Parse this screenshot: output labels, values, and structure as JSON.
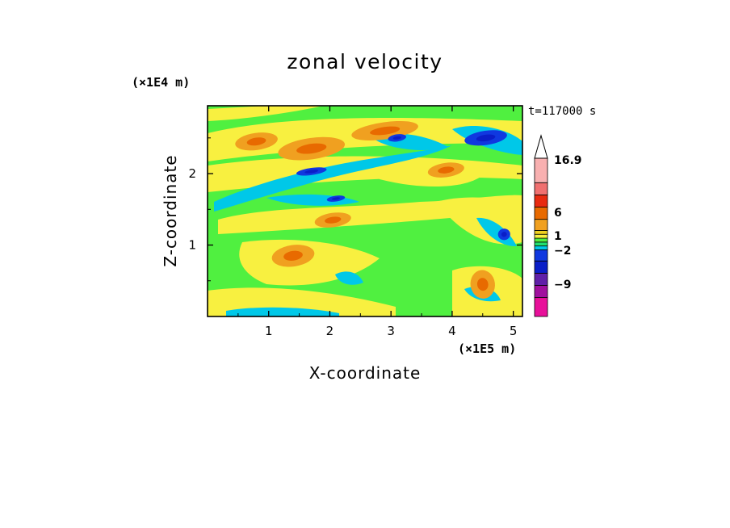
{
  "chart_data": {
    "type": "heatmap",
    "title": "zonal velocity",
    "xlabel": "X-coordinate",
    "ylabel": "Z-coordinate",
    "x_unit": "(×1E5 m)",
    "y_unit": "(×1E4 m)",
    "time_label": "t=117000 s",
    "xlim": [
      0,
      5.15
    ],
    "ylim": [
      0,
      2.95
    ],
    "x_ticks": [
      "1",
      "2",
      "3",
      "4",
      "5"
    ],
    "y_ticks": [
      "1",
      "2"
    ],
    "colorbar": {
      "levels": [
        {
          "color": "#e8109a"
        },
        {
          "color": "#a0109e"
        },
        {
          "color": "#6020a8"
        },
        {
          "color": "#0a1ec8"
        },
        {
          "color": "#1038e0"
        },
        {
          "color": "#00c8e8"
        },
        {
          "color": "#20e070"
        },
        {
          "color": "#50f040"
        },
        {
          "color": "#f8f040"
        },
        {
          "color": "#f0d020"
        },
        {
          "color": "#f0a020"
        },
        {
          "color": "#e86a00"
        },
        {
          "color": "#e82a10"
        },
        {
          "color": "#f07070"
        },
        {
          "color": "#f8b0b0"
        }
      ],
      "labels": [
        "16.9",
        "6",
        "1",
        "−2",
        "−9"
      ],
      "extend_max": true
    },
    "regions": [
      {
        "level": "orange",
        "x": 0.8,
        "z": 2.45,
        "rx": 0.35,
        "rz": 0.12
      },
      {
        "level": "orange",
        "x": 1.7,
        "z": 2.35,
        "rx": 0.55,
        "rz": 0.15
      },
      {
        "level": "orange",
        "x": 2.9,
        "z": 2.6,
        "rx": 0.55,
        "rz": 0.12
      },
      {
        "level": "orange",
        "x": 3.9,
        "z": 2.05,
        "rx": 0.3,
        "rz": 0.1
      },
      {
        "level": "orange",
        "x": 1.4,
        "z": 0.85,
        "rx": 0.35,
        "rz": 0.15
      },
      {
        "level": "orange",
        "x": 2.05,
        "z": 1.35,
        "rx": 0.3,
        "rz": 0.1
      },
      {
        "level": "orange",
        "x": 4.5,
        "z": 0.45,
        "rx": 0.2,
        "rz": 0.2
      },
      {
        "level": "blue",
        "x": 4.55,
        "z": 2.5,
        "rx": 0.35,
        "rz": 0.1
      },
      {
        "level": "blue",
        "x": 3.1,
        "z": 2.5,
        "rx": 0.15,
        "rz": 0.05
      },
      {
        "level": "blue",
        "x": 1.7,
        "z": 2.03,
        "rx": 0.25,
        "rz": 0.05
      },
      {
        "level": "blue",
        "x": 2.1,
        "z": 1.65,
        "rx": 0.15,
        "rz": 0.04
      },
      {
        "level": "blue",
        "x": 4.85,
        "z": 1.15,
        "rx": 0.1,
        "rz": 0.08
      }
    ]
  }
}
